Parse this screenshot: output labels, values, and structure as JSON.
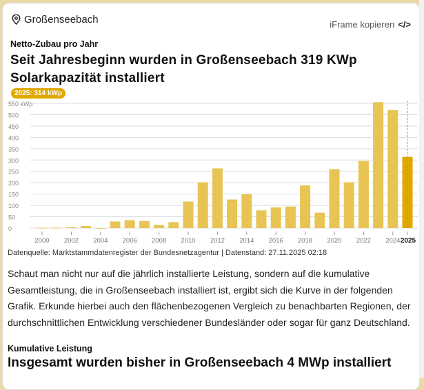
{
  "header": {
    "location": "Großenseebach",
    "iframe_label": "iFrame kopieren",
    "iframe_icon": "code-icon",
    "location_icon": "map-pin-icon"
  },
  "section1": {
    "subtitle": "Netto-Zubau pro Jahr",
    "title": "Seit Jahresbeginn wurden in Großenseebach 319 KWp Solarkapazität installiert",
    "badge": "2025: 314 kWp",
    "source": "Datenquelle: Marktstammdatenregister der Bundesnetzagentur | Datenstand: 27.11.2025 02:18"
  },
  "paragraph": "Schaut man nicht nur auf die jährlich installierte Leistung, sondern auf die kumulative Gesamtleistung, die in Großenseebach installiert ist, ergibt sich die Kurve in der folgenden Grafik. Erkunde hierbei auch den flächenbezogenen Vergleich zu benachbarten Regionen, der durchschnittlichen Entwicklung verschiedener Bundesländer oder sogar für ganz Deutschland.",
  "section2": {
    "subtitle": "Kumulative Leistung",
    "title": "Insgesamt wurden bisher in Großenseebach 4 MWp installiert"
  },
  "chart_data": {
    "type": "bar",
    "ylabel": "kWp",
    "ylim": [
      0,
      550
    ],
    "yticks": [
      0,
      50,
      100,
      150,
      200,
      250,
      300,
      350,
      400,
      450,
      500,
      550
    ],
    "ytick_labels": [
      "0",
      "50",
      "100",
      "150",
      "200",
      "250",
      "300",
      "350",
      "400",
      "450",
      "500",
      "550 kWp"
    ],
    "categories": [
      2000,
      2001,
      2002,
      2003,
      2004,
      2005,
      2006,
      2007,
      2008,
      2009,
      2010,
      2011,
      2012,
      2013,
      2014,
      2015,
      2016,
      2017,
      2018,
      2019,
      2020,
      2021,
      2022,
      2023,
      2024,
      2025
    ],
    "values": [
      1,
      1,
      4,
      9,
      0,
      29,
      35,
      31,
      14,
      26,
      117,
      202,
      263,
      126,
      149,
      78,
      91,
      95,
      188,
      68,
      260,
      202,
      296,
      555,
      520,
      314
    ],
    "xtick_labels": [
      "2000",
      "2002",
      "2004",
      "2006",
      "2008",
      "2010",
      "2012",
      "2014",
      "2016",
      "2018",
      "2020",
      "2022",
      "2024",
      "2025"
    ],
    "highlight": 2025,
    "grid": true,
    "colors": {
      "bar": "#e8c454",
      "highlight": "#e0a800",
      "grid": "#dddddd"
    }
  }
}
